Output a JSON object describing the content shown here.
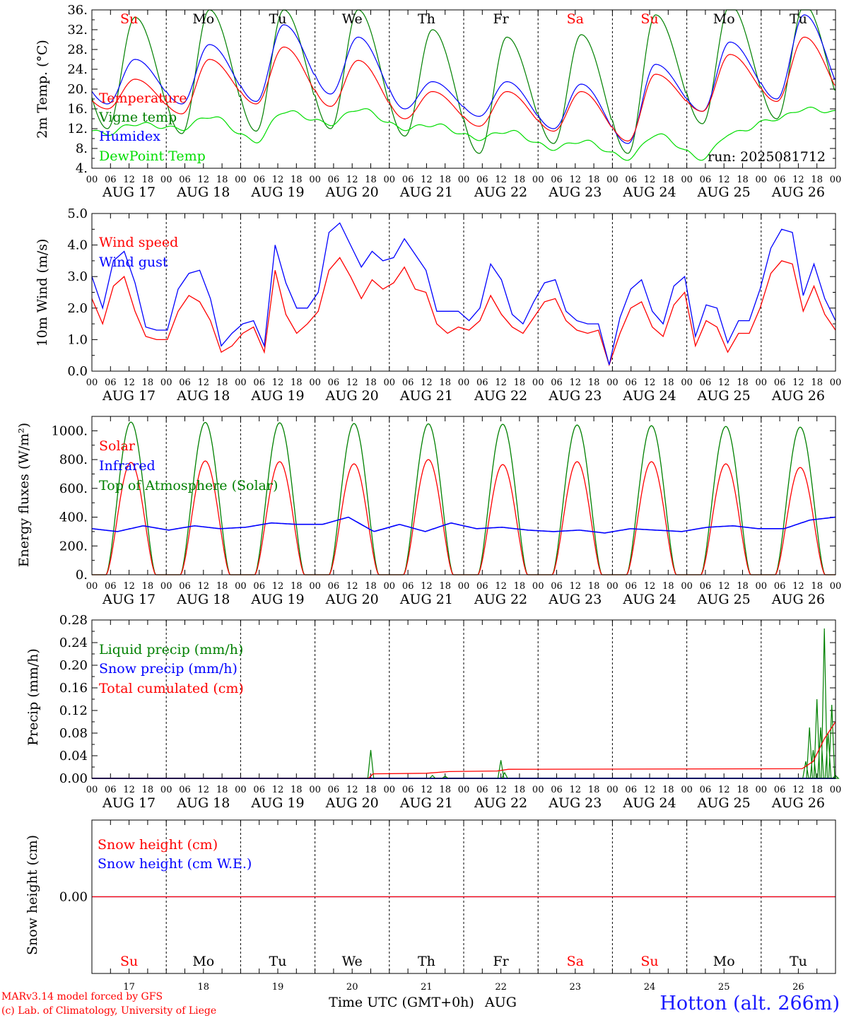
{
  "chart_data": {
    "type": "line",
    "run_label": "run: 2025081712",
    "hour_ticks": [
      "00",
      "06",
      "12",
      "18"
    ],
    "hour_tick_end": "00",
    "dates": [
      "AUG 17",
      "AUG 18",
      "AUG 19",
      "AUG 20",
      "AUG 21",
      "AUG 22",
      "AUG 23",
      "AUG 24",
      "AUG 25",
      "AUG 26"
    ],
    "weekdays": [
      "Su",
      "Mo",
      "Tu",
      "We",
      "Th",
      "Fr",
      "Sa",
      "Su",
      "Mo",
      "Tu"
    ],
    "weekend_flags": [
      true,
      false,
      false,
      false,
      false,
      false,
      true,
      true,
      false,
      false
    ],
    "day_numbers": [
      "17",
      "18",
      "19",
      "20",
      "21",
      "22",
      "23",
      "24",
      "25",
      "26"
    ],
    "xlabel": "Time UTC (GMT+0h)",
    "month_label": "AUG",
    "footer_line1": "MARv3.14 model forced by GFS",
    "footer_line2": "(c) Lab. of Climatology, University of Liege",
    "station": "Hotton (alt. 266m)",
    "colors": {
      "red": "#ff0000",
      "green": "#008000",
      "blue": "#0000ff",
      "light_green": "#00dd00",
      "axis": "#000000"
    },
    "panels": [
      {
        "id": "temperature",
        "ylabel": "2m Temp. (°C)",
        "ylim": [
          4,
          36
        ],
        "yticks": [
          "4.",
          "8.",
          "12.",
          "16.",
          "20.",
          "24.",
          "28.",
          "32.",
          "36."
        ],
        "ytick_values": [
          4,
          8,
          12,
          16,
          20,
          24,
          28,
          32,
          36
        ],
        "series": [
          {
            "name": "Vigne temp",
            "color": "#008000",
            "min": [
              12,
              11,
              11.5,
              12,
              10.5,
              7,
              9,
              7,
              13,
              14,
              13
            ],
            "max": [
              34.5,
              36,
              36,
              36,
              32,
              30.5,
              31,
              35,
              37,
              37
            ]
          },
          {
            "name": "Humidex",
            "color": "#0000ff",
            "min": [
              17,
              17,
              17.5,
              19,
              16,
              14.5,
              12,
              9,
              15.5,
              18,
              17
            ],
            "max": [
              26,
              29,
              33,
              30.5,
              21.5,
              21.5,
              21,
              25,
              29.5,
              35
            ]
          },
          {
            "name": "Temperature",
            "color": "#ff0000",
            "min": [
              16,
              15,
              17,
              16.5,
              14,
              12.5,
              11.5,
              9.5,
              15.5,
              17.5,
              17
            ],
            "max": [
              22,
              26,
              28.5,
              25.8,
              19.5,
              19.5,
              19.5,
              23,
              27,
              30.5
            ]
          },
          {
            "name": "DewPoint Temp",
            "color": "#00dd00",
            "min": [
              11,
              12,
              9.5,
              13,
              12,
              10,
              8,
              6,
              6,
              14,
              15
            ],
            "max": [
              13,
              14.5,
              15.5,
              16,
              12.8,
              11.5,
              9.5,
              10.8,
              11,
              16,
              18
            ]
          }
        ]
      },
      {
        "id": "wind",
        "ylabel": "10m Wind (m/s)",
        "ylim": [
          0,
          5
        ],
        "yticks": [
          "0.0",
          "1.0",
          "2.0",
          "3.0",
          "4.0",
          "5.0"
        ],
        "ytick_values": [
          0,
          1,
          2,
          3,
          4,
          5
        ],
        "series": [
          {
            "name": "Wind speed",
            "color": "#ff0000",
            "values": [
              2.3,
              1.5,
              2.7,
              3.0,
              1.9,
              1.1,
              1.0,
              1.0,
              1.9,
              2.4,
              2.2,
              1.6,
              0.6,
              0.8,
              1.2,
              1.4,
              0.6,
              3.2,
              1.8,
              1.2,
              1.5,
              1.9,
              3.2,
              3.6,
              3.0,
              2.3,
              2.9,
              2.6,
              2.8,
              3.3,
              2.6,
              2.5,
              1.5,
              1.2,
              1.4,
              1.3,
              1.6,
              2.4,
              1.8,
              1.4,
              1.2,
              1.7,
              2.2,
              2.3,
              1.6,
              1.3,
              1.2,
              1.3,
              0.2,
              1.2,
              2.0,
              2.2,
              1.4,
              1.1,
              2.1,
              2.5,
              0.8,
              1.6,
              1.4,
              0.6,
              1.2,
              1.2,
              2.0,
              3.1,
              3.5,
              3.4,
              1.9,
              2.7,
              1.8,
              1.3
            ]
          },
          {
            "name": "Wind gust",
            "color": "#0000ff",
            "values": [
              3.0,
              2.0,
              3.5,
              3.8,
              2.8,
              1.4,
              1.3,
              1.3,
              2.6,
              3.1,
              3.2,
              2.3,
              0.8,
              1.2,
              1.5,
              1.6,
              0.8,
              4.0,
              2.8,
              2.0,
              2.0,
              2.5,
              4.4,
              4.7,
              4.0,
              3.3,
              3.8,
              3.5,
              3.6,
              4.2,
              3.7,
              3.2,
              1.9,
              1.9,
              1.9,
              1.6,
              2.0,
              3.4,
              2.9,
              1.8,
              1.5,
              2.2,
              2.8,
              2.9,
              1.9,
              1.6,
              1.5,
              1.5,
              0.2,
              1.7,
              2.6,
              2.9,
              1.9,
              1.5,
              2.7,
              3.0,
              1.1,
              2.1,
              2.0,
              0.9,
              1.6,
              1.6,
              2.6,
              3.9,
              4.5,
              4.4,
              2.4,
              3.4,
              2.3,
              1.6
            ]
          }
        ]
      },
      {
        "id": "energy",
        "ylabel": "Energy fluxes (W/m²)",
        "ylim": [
          0,
          1100
        ],
        "yticks": [
          "0.",
          "200.",
          "400.",
          "600.",
          "800.",
          "1000."
        ],
        "ytick_values": [
          0,
          200,
          400,
          600,
          800,
          1000
        ],
        "series": [
          {
            "name": "Solar",
            "color": "#ff0000",
            "peaks": [
              780,
              790,
              785,
              770,
              800,
              765,
              785,
              785,
              770,
              745
            ]
          },
          {
            "name": "Infrared",
            "color": "#0000ff",
            "values": [
              320,
              300,
              340,
              310,
              340,
              320,
              330,
              360,
              350,
              350,
              400,
              300,
              350,
              300,
              360,
              320,
              330,
              310,
              300,
              310,
              290,
              320,
              310,
              300,
              330,
              340,
              320,
              320,
              380,
              400
            ]
          },
          {
            "name": "Top of Atmosphere (Solar)",
            "color": "#008000",
            "peaks": [
              1060,
              1058,
              1055,
              1050,
              1048,
              1045,
              1040,
              1035,
              1030,
              1025
            ]
          }
        ]
      },
      {
        "id": "precip",
        "ylabel": "Precip (mm/h)",
        "ylim": [
          0,
          0.28
        ],
        "yticks": [
          "0.00",
          "0.04",
          "0.08",
          "0.12",
          "0.16",
          "0.20",
          "0.24",
          "0.28"
        ],
        "ytick_values": [
          0,
          0.04,
          0.08,
          0.12,
          0.16,
          0.2,
          0.24,
          0.28
        ],
        "series": [
          {
            "name": "Liquid precip (mm/h)",
            "color": "#008000",
            "events": [
              [
                3.75,
                0.05
              ],
              [
                4.58,
                0.005
              ],
              [
                4.75,
                0.004
              ],
              [
                5.5,
                0.032
              ],
              [
                5.55,
                0.01
              ],
              [
                9.6,
                0.03
              ],
              [
                9.65,
                0.09
              ],
              [
                9.7,
                0.05
              ],
              [
                9.75,
                0.14
              ],
              [
                9.8,
                0.09
              ],
              [
                9.85,
                0.265
              ],
              [
                9.9,
                0.08
              ],
              [
                9.95,
                0.13
              ],
              [
                10.0,
                0.005
              ]
            ]
          },
          {
            "name": "Snow precip (mm/h)",
            "color": "#0000ff",
            "values": [
              0
            ]
          },
          {
            "name": "Total cumulated (cm)",
            "color": "#ff0000",
            "steps": [
              [
                0,
                0
              ],
              [
                3.72,
                0
              ],
              [
                3.78,
                0.008
              ],
              [
                4.5,
                0.009
              ],
              [
                4.8,
                0.012
              ],
              [
                5.45,
                0.013
              ],
              [
                5.6,
                0.016
              ],
              [
                9.55,
                0.017
              ],
              [
                9.7,
                0.03
              ],
              [
                9.85,
                0.07
              ],
              [
                10.0,
                0.1
              ]
            ]
          }
        ]
      },
      {
        "id": "snow",
        "ylabel": "Snow height (cm)",
        "ylim": [
          -1,
          1
        ],
        "yticks": [
          "0.00"
        ],
        "ytick_values": [
          0
        ],
        "series": [
          {
            "name": "Snow height (cm)",
            "color": "#ff0000",
            "values": [
              0
            ]
          },
          {
            "name": "Snow height (cm W.E.)",
            "color": "#0000ff",
            "values": [
              0
            ]
          }
        ]
      }
    ]
  }
}
